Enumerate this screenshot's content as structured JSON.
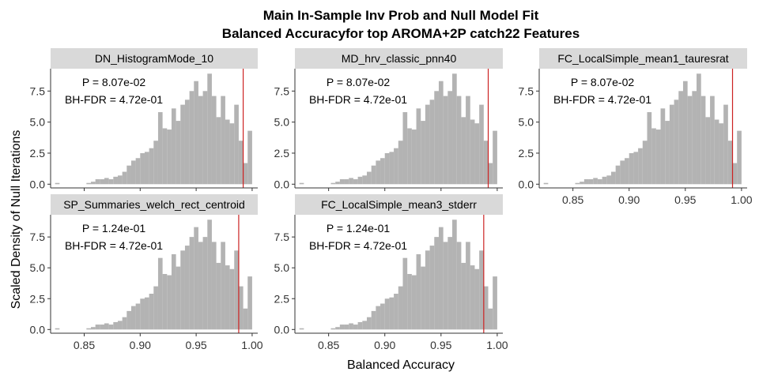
{
  "figure": {
    "title_line1": "Main In-Sample Inv Prob and Null Model Fit",
    "title_line2": "Balanced Accuracyfor top AROMA+2P catch22 Features",
    "xlabel": "Balanced Accuracy",
    "ylabel": "Scaled Density of Null Iterations"
  },
  "colors": {
    "bar": "#b3b3b3",
    "strip": "#d9d9d9",
    "vline": "#cc2222",
    "axis": "#333333",
    "text": "#000000"
  },
  "chart_data": [
    {
      "type": "bar",
      "title": "DN_HistogramMode_10",
      "annotation_p": "P = 8.07e-02",
      "annotation_fdr": "BH-FDR = 4.72e-01",
      "observed_value": 0.992,
      "xlim": [
        0.82,
        1.005
      ],
      "ylim": [
        -0.3,
        9.3
      ],
      "xticks": [
        0.85,
        0.9,
        0.95,
        1.0
      ],
      "xtick_labels": [],
      "yticks": [
        0.0,
        2.5,
        5.0,
        7.5
      ],
      "ytick_labels": [
        "0.0",
        "2.5",
        "5.0",
        "7.5"
      ],
      "bin_width": 0.004,
      "x": [
        0.826,
        0.854,
        0.858,
        0.862,
        0.866,
        0.87,
        0.874,
        0.878,
        0.882,
        0.886,
        0.89,
        0.894,
        0.898,
        0.902,
        0.906,
        0.91,
        0.914,
        0.918,
        0.922,
        0.926,
        0.93,
        0.934,
        0.938,
        0.942,
        0.946,
        0.95,
        0.954,
        0.958,
        0.962,
        0.966,
        0.97,
        0.974,
        0.978,
        0.982,
        0.986,
        0.99,
        0.994,
        0.998
      ],
      "values": [
        0.1,
        0.1,
        0.2,
        0.4,
        0.4,
        0.5,
        0.4,
        0.6,
        0.7,
        1.0,
        1.5,
        1.9,
        2.1,
        2.5,
        2.6,
        2.9,
        3.5,
        5.8,
        4.5,
        4.4,
        6.1,
        5.1,
        6.4,
        6.8,
        7.5,
        8.3,
        7.1,
        7.5,
        8.9,
        7.1,
        5.4,
        7.1,
        5.2,
        4.9,
        6.4,
        3.5,
        1.7,
        4.3
      ]
    },
    {
      "type": "bar",
      "title": "MD_hrv_classic_pnn40",
      "annotation_p": "P = 8.07e-02",
      "annotation_fdr": "BH-FDR = 4.72e-01",
      "observed_value": 0.992,
      "xlim": [
        0.82,
        1.005
      ],
      "ylim": [
        -0.3,
        9.3
      ],
      "xticks": [
        0.85,
        0.9,
        0.95,
        1.0
      ],
      "xtick_labels": [],
      "yticks": [
        0.0,
        2.5,
        5.0,
        7.5
      ],
      "ytick_labels": [
        "0.0",
        "2.5",
        "5.0",
        "7.5"
      ],
      "bin_width": 0.004,
      "x": [
        0.826,
        0.854,
        0.858,
        0.862,
        0.866,
        0.87,
        0.874,
        0.878,
        0.882,
        0.886,
        0.89,
        0.894,
        0.898,
        0.902,
        0.906,
        0.91,
        0.914,
        0.918,
        0.922,
        0.926,
        0.93,
        0.934,
        0.938,
        0.942,
        0.946,
        0.95,
        0.954,
        0.958,
        0.962,
        0.966,
        0.97,
        0.974,
        0.978,
        0.982,
        0.986,
        0.99,
        0.994,
        0.998
      ],
      "values": [
        0.1,
        0.1,
        0.2,
        0.4,
        0.4,
        0.5,
        0.4,
        0.6,
        0.7,
        1.0,
        1.5,
        1.9,
        2.1,
        2.5,
        2.6,
        2.9,
        3.5,
        5.8,
        4.5,
        4.4,
        6.1,
        5.1,
        6.4,
        6.8,
        7.5,
        8.3,
        7.1,
        7.5,
        8.9,
        7.1,
        5.4,
        7.1,
        5.2,
        4.9,
        6.4,
        3.5,
        1.7,
        4.3
      ]
    },
    {
      "type": "bar",
      "title": "FC_LocalSimple_mean1_tauresrat",
      "annotation_p": "P = 8.07e-02",
      "annotation_fdr": "BH-FDR = 4.72e-01",
      "observed_value": 0.992,
      "xlim": [
        0.82,
        1.005
      ],
      "ylim": [
        -0.3,
        9.3
      ],
      "xticks": [
        0.85,
        0.9,
        0.95,
        1.0
      ],
      "xtick_labels": [
        "0.85",
        "0.90",
        "0.95",
        "1.00"
      ],
      "yticks": [
        0.0,
        2.5,
        5.0,
        7.5
      ],
      "ytick_labels": [
        "0.0",
        "2.5",
        "5.0",
        "7.5"
      ],
      "bin_width": 0.004,
      "x": [
        0.826,
        0.854,
        0.858,
        0.862,
        0.866,
        0.87,
        0.874,
        0.878,
        0.882,
        0.886,
        0.89,
        0.894,
        0.898,
        0.902,
        0.906,
        0.91,
        0.914,
        0.918,
        0.922,
        0.926,
        0.93,
        0.934,
        0.938,
        0.942,
        0.946,
        0.95,
        0.954,
        0.958,
        0.962,
        0.966,
        0.97,
        0.974,
        0.978,
        0.982,
        0.986,
        0.99,
        0.994,
        0.998
      ],
      "values": [
        0.1,
        0.1,
        0.2,
        0.4,
        0.4,
        0.5,
        0.4,
        0.6,
        0.7,
        1.0,
        1.5,
        1.9,
        2.1,
        2.5,
        2.6,
        2.9,
        3.5,
        5.8,
        4.5,
        4.4,
        6.1,
        5.1,
        6.4,
        6.8,
        7.5,
        8.3,
        7.1,
        7.5,
        8.9,
        7.1,
        5.4,
        7.1,
        5.2,
        4.9,
        6.4,
        3.5,
        1.7,
        4.3
      ]
    },
    {
      "type": "bar",
      "title": "SP_Summaries_welch_rect_centroid",
      "annotation_p": "P = 1.24e-01",
      "annotation_fdr": "BH-FDR = 4.72e-01",
      "observed_value": 0.988,
      "xlim": [
        0.82,
        1.005
      ],
      "ylim": [
        -0.3,
        9.3
      ],
      "xticks": [
        0.85,
        0.9,
        0.95,
        1.0
      ],
      "xtick_labels": [
        "0.85",
        "0.90",
        "0.95",
        "1.00"
      ],
      "yticks": [
        0.0,
        2.5,
        5.0,
        7.5
      ],
      "ytick_labels": [
        "0.0",
        "2.5",
        "5.0",
        "7.5"
      ],
      "bin_width": 0.004,
      "x": [
        0.826,
        0.854,
        0.858,
        0.862,
        0.866,
        0.87,
        0.874,
        0.878,
        0.882,
        0.886,
        0.89,
        0.894,
        0.898,
        0.902,
        0.906,
        0.91,
        0.914,
        0.918,
        0.922,
        0.926,
        0.93,
        0.934,
        0.938,
        0.942,
        0.946,
        0.95,
        0.954,
        0.958,
        0.962,
        0.966,
        0.97,
        0.974,
        0.978,
        0.982,
        0.986,
        0.99,
        0.994,
        0.998
      ],
      "values": [
        0.1,
        0.1,
        0.2,
        0.4,
        0.4,
        0.5,
        0.4,
        0.6,
        0.7,
        1.0,
        1.5,
        1.9,
        2.1,
        2.5,
        2.6,
        2.9,
        3.5,
        5.8,
        4.5,
        4.4,
        6.1,
        5.1,
        6.4,
        6.8,
        7.5,
        8.3,
        7.1,
        7.5,
        8.9,
        7.1,
        5.4,
        7.1,
        5.2,
        4.9,
        6.4,
        3.5,
        1.7,
        4.3
      ]
    },
    {
      "type": "bar",
      "title": "FC_LocalSimple_mean3_stderr",
      "annotation_p": "P = 1.24e-01",
      "annotation_fdr": "BH-FDR = 4.72e-01",
      "observed_value": 0.988,
      "xlim": [
        0.82,
        1.005
      ],
      "ylim": [
        -0.3,
        9.3
      ],
      "xticks": [
        0.85,
        0.9,
        0.95,
        1.0
      ],
      "xtick_labels": [
        "0.85",
        "0.90",
        "0.95",
        "1.00"
      ],
      "yticks": [
        0.0,
        2.5,
        5.0,
        7.5
      ],
      "ytick_labels": [
        "0.0",
        "2.5",
        "5.0",
        "7.5"
      ],
      "bin_width": 0.004,
      "x": [
        0.826,
        0.854,
        0.858,
        0.862,
        0.866,
        0.87,
        0.874,
        0.878,
        0.882,
        0.886,
        0.89,
        0.894,
        0.898,
        0.902,
        0.906,
        0.91,
        0.914,
        0.918,
        0.922,
        0.926,
        0.93,
        0.934,
        0.938,
        0.942,
        0.946,
        0.95,
        0.954,
        0.958,
        0.962,
        0.966,
        0.97,
        0.974,
        0.978,
        0.982,
        0.986,
        0.99,
        0.994,
        0.998
      ],
      "values": [
        0.1,
        0.1,
        0.2,
        0.4,
        0.4,
        0.5,
        0.4,
        0.6,
        0.7,
        1.0,
        1.5,
        1.9,
        2.1,
        2.5,
        2.6,
        2.9,
        3.5,
        5.8,
        4.5,
        4.4,
        6.1,
        5.1,
        6.4,
        6.8,
        7.5,
        8.3,
        7.1,
        7.5,
        8.9,
        7.1,
        5.4,
        7.1,
        5.2,
        4.9,
        6.4,
        3.5,
        1.7,
        4.3
      ]
    }
  ]
}
